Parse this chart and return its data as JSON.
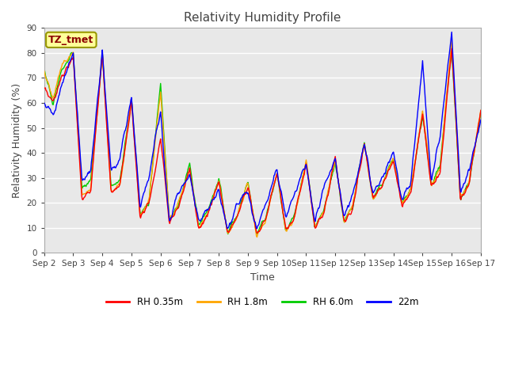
{
  "title": "Relativity Humidity Profile",
  "xlabel": "Time",
  "ylabel": "Relativity Humidity (%)",
  "ylim": [
    0,
    90
  ],
  "yticks": [
    0,
    10,
    20,
    30,
    40,
    50,
    60,
    70,
    80,
    90
  ],
  "annotation_text": "TZ_tmet",
  "annotation_color": "#8B0000",
  "annotation_bg": "#FFFF99",
  "annotation_edge": "#999900",
  "fig_bg_color": "#FFFFFF",
  "plot_bg_color": "#E8E8E8",
  "grid_color": "#FFFFFF",
  "line_colors": {
    "RH 0.35m": "#FF0000",
    "RH 1.8m": "#FFA500",
    "RH 6.0m": "#00CC00",
    "22m": "#0000FF"
  },
  "legend_labels": [
    "RH 0.35m",
    "RH 1.8m",
    "RH 6.0m",
    "22m"
  ],
  "num_points": 721,
  "figsize": [
    6.4,
    4.8
  ],
  "dpi": 100
}
